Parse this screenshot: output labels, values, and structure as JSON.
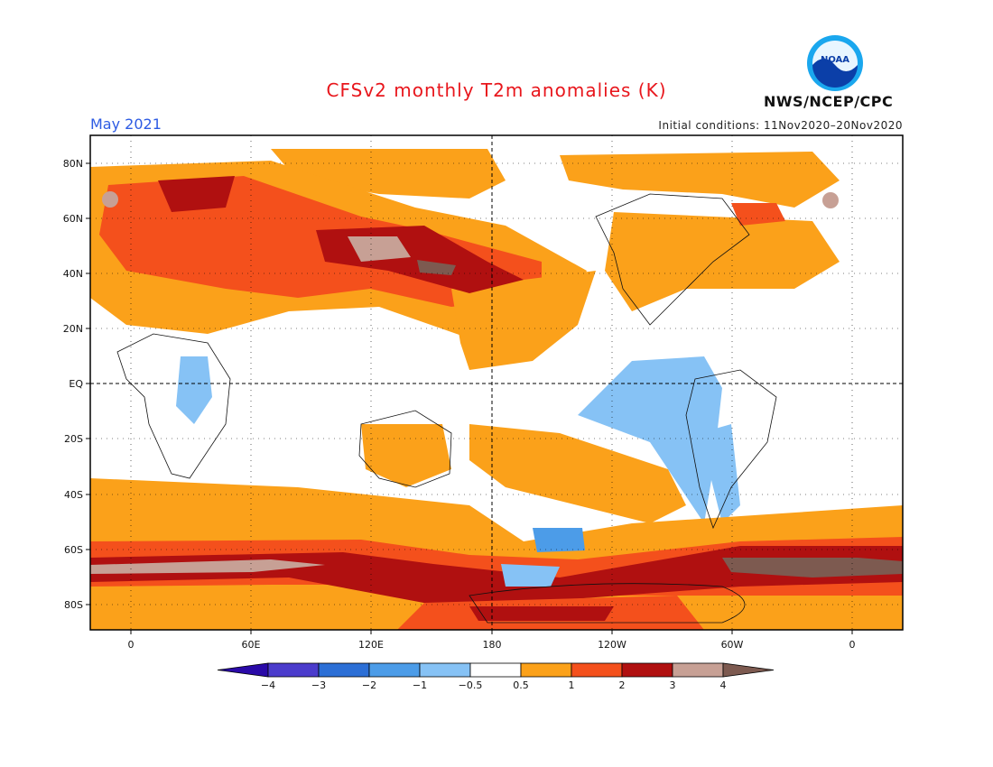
{
  "header": {
    "title": "CFSv2 monthly T2m anomalies (K)",
    "month": "May 2021",
    "initial_conditions": "Initial conditions: 11Nov2020–20Nov2020",
    "agency": "NWS/NCEP/CPC",
    "logo_text": "NOAA"
  },
  "map": {
    "lat_labels": [
      "80N",
      "60N",
      "40N",
      "20N",
      "EQ",
      "20S",
      "40S",
      "60S",
      "80S"
    ],
    "lon_labels": [
      "0",
      "60E",
      "120E",
      "180",
      "120W",
      "60W",
      "0"
    ]
  },
  "colorbar": {
    "tick_labels": [
      "−4",
      "−3",
      "−2",
      "−1",
      "−0.5",
      "0.5",
      "1",
      "2",
      "3",
      "4"
    ],
    "colors": {
      "lt_neg4": "#2a0aa8",
      "neg4_neg3": "#4b3ccc",
      "neg3_neg2": "#2c6fd6",
      "neg2_neg1": "#4c9ce8",
      "neg1_neg05": "#86c2f5",
      "neutral": "#ffffff",
      "p05_p1": "#fba11a",
      "p1_p2": "#f4501c",
      "p2_p3": "#b01010",
      "p3_p4": "#c7a095",
      "gt_p4": "#7d5a50"
    }
  }
}
